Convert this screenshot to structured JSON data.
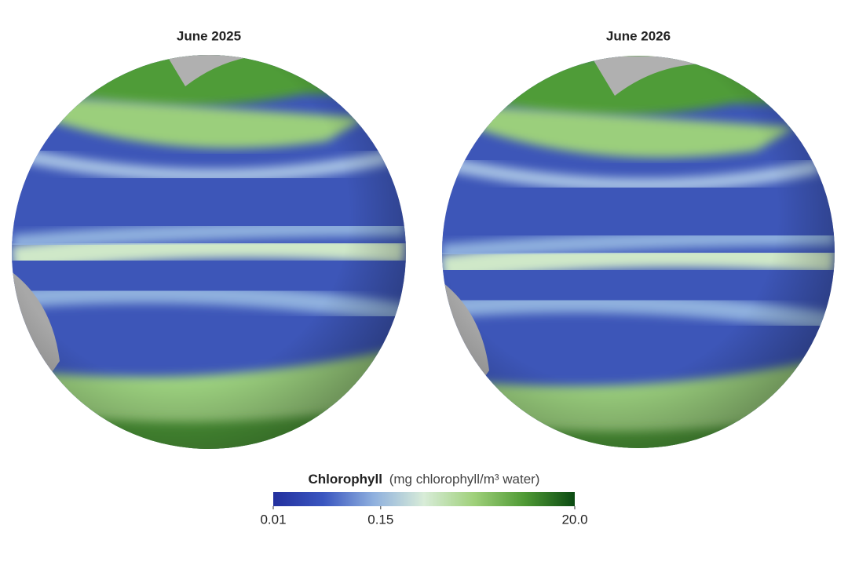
{
  "maps": [
    {
      "title": "June 2025"
    },
    {
      "title": "June 2026"
    }
  ],
  "colorbar": {
    "title": "Chlorophyll",
    "unit": "(mg chlorophyll/m³ water)",
    "scale": "log",
    "lim": [
      0.01,
      20
    ],
    "ticks": [
      0.01,
      0.15,
      {
        "value": 20,
        "label": "20.0"
      }
    ],
    "colors": [
      "#23309e",
      "#3a56c0",
      "#8fb0de",
      "#d8ecd8",
      "#9fd07a",
      "#4f9a35",
      "#0b4a12"
    ]
  }
}
